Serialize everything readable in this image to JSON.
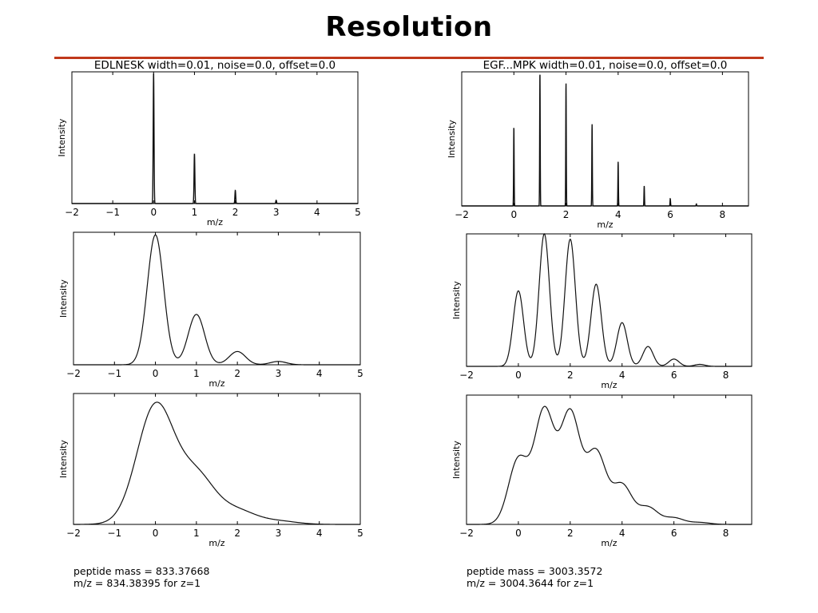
{
  "slide": {
    "title": "Resolution"
  },
  "captions": [
    {
      "mass_line": "peptide mass = 833.37668",
      "mz_line": "m/z = 834.38395 for z=1"
    },
    {
      "mass_line": "peptide mass = 3003.3572",
      "mz_line": "m/z = 3004.3644 for z=1"
    }
  ],
  "chart_data": [
    {
      "type": "line",
      "title": "EDLNESK width=0.01, noise=0.0, offset=0.0",
      "xlabel": "m/z",
      "ylabel": "Intensity",
      "xlim": [
        -2,
        5
      ],
      "xticks": [
        -2,
        -1,
        0,
        1,
        2,
        3,
        4,
        5
      ],
      "ylim": [
        0,
        1.0
      ],
      "yticks_shown": false,
      "grid": false,
      "style": "stick",
      "peak_width": 0.01,
      "peaks": [
        {
          "x": 0,
          "y": 0.99
        },
        {
          "x": 1,
          "y": 0.38
        },
        {
          "x": 2,
          "y": 0.1
        },
        {
          "x": 3,
          "y": 0.025
        }
      ]
    },
    {
      "type": "line",
      "title": "EGF...MPK width=0.01, noise=0.0, offset=0.0",
      "xlabel": "m/z",
      "ylabel": "Intensity",
      "xlim": [
        -2,
        9
      ],
      "xticks": [
        -2,
        0,
        2,
        4,
        6,
        8
      ],
      "ylim": [
        0,
        1.0
      ],
      "yticks_shown": false,
      "grid": false,
      "style": "stick",
      "peak_width": 0.01,
      "peaks": [
        {
          "x": 0,
          "y": 0.59
        },
        {
          "x": 1,
          "y": 1.0
        },
        {
          "x": 2,
          "y": 0.92
        },
        {
          "x": 3,
          "y": 0.61
        },
        {
          "x": 4,
          "y": 0.33
        },
        {
          "x": 5,
          "y": 0.15
        },
        {
          "x": 6,
          "y": 0.055
        },
        {
          "x": 7,
          "y": 0.015
        }
      ]
    },
    {
      "type": "line",
      "title": "",
      "xlabel": "m/z",
      "ylabel": "Intensity",
      "xlim": [
        -2,
        5
      ],
      "xticks": [
        -2,
        -1,
        0,
        1,
        2,
        3,
        4,
        5
      ],
      "ylim": [
        0,
        1.0
      ],
      "yticks_shown": false,
      "grid": false,
      "style": "gaussian",
      "peak_width": 0.2,
      "peaks": [
        {
          "x": 0,
          "y": 0.98
        },
        {
          "x": 1,
          "y": 0.38
        },
        {
          "x": 2,
          "y": 0.1
        },
        {
          "x": 3,
          "y": 0.025
        }
      ]
    },
    {
      "type": "line",
      "title": "",
      "xlabel": "m/z",
      "ylabel": "Intensity",
      "xlim": [
        -2,
        9
      ],
      "xticks": [
        -2,
        0,
        2,
        4,
        6,
        8
      ],
      "ylim": [
        0,
        1.0
      ],
      "yticks_shown": false,
      "grid": false,
      "style": "gaussian",
      "peak_width": 0.2,
      "peaks": [
        {
          "x": 0,
          "y": 0.57
        },
        {
          "x": 1,
          "y": 1.0
        },
        {
          "x": 2,
          "y": 0.96
        },
        {
          "x": 3,
          "y": 0.62
        },
        {
          "x": 4,
          "y": 0.33
        },
        {
          "x": 5,
          "y": 0.15
        },
        {
          "x": 6,
          "y": 0.055
        },
        {
          "x": 7,
          "y": 0.015
        }
      ]
    },
    {
      "type": "line",
      "title": "",
      "xlabel": "m/z",
      "ylabel": "Intensity",
      "xlim": [
        -2,
        5
      ],
      "xticks": [
        -2,
        -1,
        0,
        1,
        2,
        3,
        4,
        5
      ],
      "ylim": [
        0,
        1.0
      ],
      "yticks_shown": false,
      "grid": false,
      "style": "gaussian",
      "peak_width": 0.45,
      "peaks": [
        {
          "x": 0,
          "y": 0.9
        },
        {
          "x": 1,
          "y": 0.36
        },
        {
          "x": 2,
          "y": 0.1
        },
        {
          "x": 3,
          "y": 0.025
        }
      ]
    },
    {
      "type": "line",
      "title": "",
      "xlabel": "m/z",
      "ylabel": "Intensity",
      "xlim": [
        -2,
        9
      ],
      "xticks": [
        -2,
        0,
        2,
        4,
        6,
        8
      ],
      "ylim": [
        0,
        1.0
      ],
      "yticks_shown": false,
      "grid": false,
      "style": "gaussian",
      "peak_width": 0.38,
      "peaks": [
        {
          "x": 0,
          "y": 0.5
        },
        {
          "x": 1,
          "y": 0.87
        },
        {
          "x": 2,
          "y": 0.85
        },
        {
          "x": 3,
          "y": 0.55
        },
        {
          "x": 4,
          "y": 0.3
        },
        {
          "x": 5,
          "y": 0.13
        },
        {
          "x": 6,
          "y": 0.05
        },
        {
          "x": 7,
          "y": 0.015
        }
      ]
    }
  ]
}
